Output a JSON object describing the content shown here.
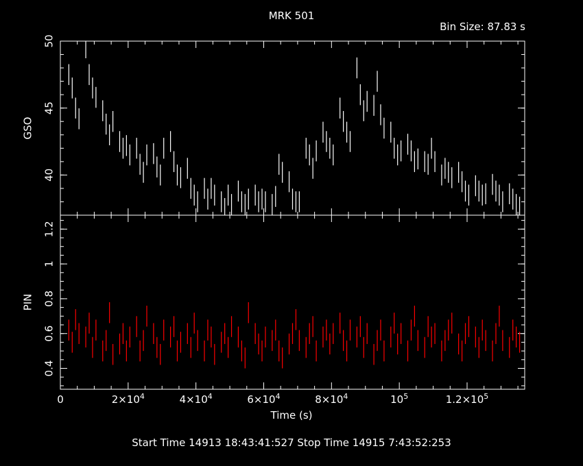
{
  "header": {
    "title": "MRK 501",
    "bin_size": "Bin Size: 87.83 s"
  },
  "footer": {
    "times": "Start Time 14913 18:43:41:527     Stop Time 14915  7:43:52:253"
  },
  "colors": {
    "background": "#000000",
    "axes": "#ffffff",
    "gso_series": "#ffffff",
    "pin_series": "#ff0000"
  },
  "chart_data": [
    {
      "type": "line",
      "panel": "upper",
      "ylabel": "GSO",
      "xlabel": "",
      "xlim": [
        0,
        137000
      ],
      "ylim": [
        37,
        50
      ],
      "yticks": [
        40,
        45,
        50
      ],
      "series": [
        {
          "color": "#ffffff",
          "x": [
            2500,
            3500,
            4500,
            5500,
            7500,
            8500,
            9500,
            10500,
            12500,
            13500,
            14500,
            15500,
            17500,
            18500,
            19500,
            20500,
            22500,
            23500,
            24500,
            25500,
            27500,
            28500,
            29500,
            30500,
            32500,
            33500,
            34500,
            35500,
            37500,
            38500,
            39500,
            40500,
            42500,
            43500,
            44500,
            45500,
            47500,
            48500,
            49500,
            50500,
            52500,
            53500,
            54500,
            55500,
            57500,
            58500,
            59500,
            60500,
            62500,
            63500,
            64500,
            65500,
            67500,
            68500,
            69500,
            70500,
            72500,
            73500,
            74500,
            75500,
            77500,
            78500,
            79500,
            80500,
            82500,
            83500,
            84500,
            85500,
            87500,
            88500,
            89500,
            90500,
            92500,
            93500,
            94500,
            95500,
            97500,
            98500,
            99500,
            100500,
            102500,
            103500,
            104500,
            105500,
            107500,
            108500,
            109500,
            110500,
            112500,
            113500,
            114500,
            115500,
            117500,
            118500,
            119500,
            120500,
            122500,
            123500,
            124500,
            125500,
            127500,
            128500,
            129500,
            130500,
            132500,
            133500,
            134500,
            135500
          ],
          "y": [
            47.5,
            46.5,
            45.0,
            44.2,
            49.5,
            47.5,
            46.5,
            45.8,
            44.8,
            43.8,
            43.0,
            44.0,
            42.5,
            42.0,
            42.2,
            41.5,
            42.0,
            40.8,
            40.2,
            41.5,
            41.6,
            40.6,
            40.0,
            42.0,
            42.5,
            41.0,
            40.0,
            39.8,
            40.5,
            39.0,
            38.5,
            38.0,
            39.0,
            38.2,
            39.0,
            38.5,
            38.0,
            37.5,
            38.5,
            37.8,
            38.8,
            38.0,
            37.8,
            38.2,
            38.5,
            38.0,
            38.2,
            38.0,
            37.8,
            38.4,
            40.8,
            40.2,
            39.5,
            38.2,
            38.0,
            38.0,
            42.0,
            41.5,
            40.5,
            41.8,
            43.2,
            42.5,
            42.0,
            41.5,
            45.0,
            44.0,
            43.2,
            42.5,
            48.0,
            46.0,
            44.8,
            45.5,
            45.2,
            47.0,
            44.5,
            43.5,
            43.2,
            42.0,
            41.5,
            41.8,
            42.3,
            41.8,
            41.0,
            41.2,
            41.0,
            40.8,
            42.0,
            41.0,
            40.0,
            40.5,
            40.2,
            39.8,
            40.2,
            39.5,
            38.8,
            38.5,
            39.2,
            38.8,
            38.5,
            38.6,
            39.3,
            38.8,
            38.5,
            38.0,
            38.6,
            38.2,
            37.8,
            37.6
          ]
        }
      ]
    },
    {
      "type": "line",
      "panel": "lower",
      "ylabel": "PIN",
      "xlabel": "Time (s)",
      "xlim": [
        0,
        137000
      ],
      "ylim": [
        0.28,
        1.28
      ],
      "yticks": [
        0.4,
        0.6,
        0.8,
        1,
        1.2
      ],
      "xticks": [
        0,
        20000,
        40000,
        60000,
        80000,
        100000,
        120000
      ],
      "xtick_labels": [
        "0",
        "2×10^4",
        "4×10^4",
        "6×10^4",
        "8×10^4",
        "10^5",
        "1.2×10^5"
      ],
      "series": [
        {
          "color": "#ff0000",
          "x": [
            2500,
            3500,
            4500,
            5500,
            7500,
            8500,
            9500,
            10500,
            12500,
            13500,
            14500,
            15500,
            17500,
            18500,
            19500,
            20500,
            22500,
            23500,
            24500,
            25500,
            27500,
            28500,
            29500,
            30500,
            32500,
            33500,
            34500,
            35500,
            37500,
            38500,
            39500,
            40500,
            42500,
            43500,
            44500,
            45500,
            47500,
            48500,
            49500,
            50500,
            52500,
            53500,
            54500,
            55500,
            57500,
            58500,
            59500,
            60500,
            62500,
            63500,
            64500,
            65500,
            67500,
            68500,
            69500,
            70500,
            72500,
            73500,
            74500,
            75500,
            77500,
            78500,
            79500,
            80500,
            82500,
            83500,
            84500,
            85500,
            87500,
            88500,
            89500,
            90500,
            92500,
            93500,
            94500,
            95500,
            97500,
            98500,
            99500,
            100500,
            102500,
            103500,
            104500,
            105500,
            107500,
            108500,
            109500,
            110500,
            112500,
            113500,
            114500,
            115500,
            117500,
            118500,
            119500,
            120500,
            122500,
            123500,
            124500,
            125500,
            127500,
            128500,
            129500,
            130500,
            132500,
            133500,
            134500,
            135500
          ],
          "y": [
            0.62,
            0.55,
            0.68,
            0.6,
            0.58,
            0.66,
            0.52,
            0.62,
            0.5,
            0.56,
            0.72,
            0.48,
            0.54,
            0.6,
            0.5,
            0.58,
            0.64,
            0.5,
            0.56,
            0.7,
            0.6,
            0.52,
            0.48,
            0.62,
            0.58,
            0.64,
            0.5,
            0.55,
            0.6,
            0.52,
            0.66,
            0.56,
            0.5,
            0.62,
            0.58,
            0.48,
            0.55,
            0.6,
            0.52,
            0.64,
            0.58,
            0.5,
            0.46,
            0.72,
            0.6,
            0.54,
            0.5,
            0.58,
            0.56,
            0.62,
            0.5,
            0.46,
            0.54,
            0.6,
            0.68,
            0.56,
            0.52,
            0.6,
            0.64,
            0.5,
            0.58,
            0.62,
            0.54,
            0.6,
            0.66,
            0.56,
            0.5,
            0.62,
            0.58,
            0.64,
            0.52,
            0.6,
            0.48,
            0.56,
            0.62,
            0.5,
            0.58,
            0.66,
            0.54,
            0.6,
            0.5,
            0.62,
            0.7,
            0.56,
            0.52,
            0.64,
            0.58,
            0.6,
            0.5,
            0.56,
            0.62,
            0.66,
            0.54,
            0.5,
            0.6,
            0.64,
            0.58,
            0.52,
            0.62,
            0.56,
            0.5,
            0.6,
            0.7,
            0.56,
            0.52,
            0.62,
            0.58,
            0.55
          ]
        }
      ]
    }
  ]
}
